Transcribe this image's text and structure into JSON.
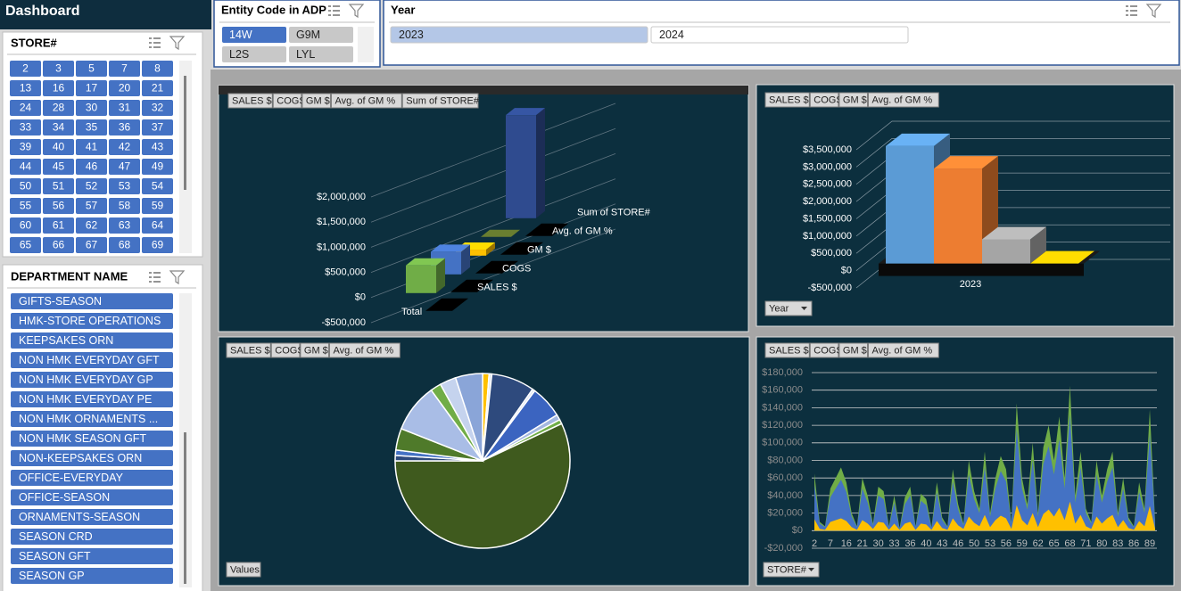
{
  "header": {
    "title": "Dashboard"
  },
  "slicers": {
    "store": {
      "title": "STORE#",
      "items": [
        "2",
        "3",
        "5",
        "7",
        "8",
        "13",
        "16",
        "17",
        "20",
        "21",
        "24",
        "28",
        "30",
        "31",
        "32",
        "33",
        "34",
        "35",
        "36",
        "37",
        "39",
        "40",
        "41",
        "42",
        "43",
        "44",
        "45",
        "46",
        "47",
        "49",
        "50",
        "51",
        "52",
        "53",
        "54",
        "55",
        "56",
        "57",
        "58",
        "59",
        "60",
        "61",
        "62",
        "63",
        "64",
        "65",
        "66",
        "67",
        "68",
        "69"
      ]
    },
    "department": {
      "title": "DEPARTMENT NAME",
      "items": [
        "GIFTS-SEASON",
        "HMK-STORE OPERATIONS",
        "KEEPSAKES ORN",
        "NON HMK EVERYDAY GFT",
        "NON HMK EVERYDAY GP",
        "NON HMK EVERYDAY PE",
        "NON HMK ORNAMENTS ...",
        "NON HMK SEASON GFT",
        "NON-KEEPSAKES ORN",
        "OFFICE-EVERYDAY",
        "OFFICE-SEASON",
        "ORNAMENTS-SEASON",
        "SEASON CRD",
        "SEASON GFT",
        "SEASON GP"
      ]
    },
    "entity": {
      "title": "Entity Code in ADP",
      "items": [
        {
          "label": "14W",
          "selected": true
        },
        {
          "label": "G9M",
          "selected": false
        },
        {
          "label": "L2S",
          "selected": false
        },
        {
          "label": "LYL",
          "selected": false
        }
      ]
    },
    "year": {
      "title": "Year",
      "items": [
        {
          "label": "2023",
          "selected": true
        },
        {
          "label": "2024",
          "selected": false
        }
      ]
    }
  },
  "chart_data": [
    {
      "type": "bar3d",
      "field_buttons": [
        "SALES $",
        "COGS",
        "GM $",
        "Avg. of GM %",
        "Sum of STORE#"
      ],
      "categories": [
        "Total"
      ],
      "series": [
        {
          "name": "SALES $",
          "color": "#70ad47",
          "values": [
            550000
          ]
        },
        {
          "name": "COGS",
          "color": "#4472c4",
          "values": [
            450000
          ]
        },
        {
          "name": "GM $",
          "color": "#ffc000",
          "values": [
            120000
          ]
        },
        {
          "name": "Avg. of GM %",
          "color": "#5b6e2a",
          "values": [
            0.35
          ]
        },
        {
          "name": "Sum of STORE#",
          "color": "#2f4b8f",
          "values": [
            2050000
          ]
        }
      ],
      "ylim": [
        -500000,
        2000000
      ],
      "yticks": [
        {
          "value": -500000,
          "label": "-$500,000"
        },
        {
          "value": 0,
          "label": "$0"
        },
        {
          "value": 500000,
          "label": "$500,000"
        },
        {
          "value": 1000000,
          "label": "$1,000,000"
        },
        {
          "value": 1500000,
          "label": "$1,500,000"
        },
        {
          "value": 2000000,
          "label": "$2,000,000"
        }
      ],
      "grid": true
    },
    {
      "type": "column3d",
      "field_buttons": [
        "SALES $",
        "COGS",
        "GM $",
        "Avg. of GM %"
      ],
      "filter_button": "Year",
      "categories": [
        "2023"
      ],
      "series": [
        {
          "name": "SALES $",
          "color": "#5b9bd5",
          "values": [
            3400000
          ]
        },
        {
          "name": "COGS",
          "color": "#ed7d31",
          "values": [
            2750000
          ]
        },
        {
          "name": "GM $",
          "color": "#a5a5a5",
          "values": [
            700000
          ]
        },
        {
          "name": "Avg. of GM %",
          "color": "#ffc000",
          "values": [
            0.35
          ]
        }
      ],
      "ylim": [
        -500000,
        3500000
      ],
      "yticks": [
        {
          "value": -500000,
          "label": "-$500,000"
        },
        {
          "value": 0,
          "label": "$0"
        },
        {
          "value": 500000,
          "label": "$500,000"
        },
        {
          "value": 1000000,
          "label": "$1,000,000"
        },
        {
          "value": 1500000,
          "label": "$1,500,000"
        },
        {
          "value": 2000000,
          "label": "$2,000,000"
        },
        {
          "value": 2500000,
          "label": "$2,500,000"
        },
        {
          "value": 3000000,
          "label": "$3,000,000"
        },
        {
          "value": 3500000,
          "label": "$3,500,000"
        }
      ],
      "grid": true
    },
    {
      "type": "pie",
      "field_buttons": [
        "SALES $",
        "COGS",
        "GM $",
        "Avg. of GM %"
      ],
      "axis_button": "Values",
      "values": [
        1.2,
        0.5,
        8,
        0.5,
        6,
        1,
        0.8,
        57,
        1,
        1,
        4,
        9,
        2,
        3,
        5
      ],
      "colors": [
        "#ffc000",
        "#dfe6f3",
        "#2e4a7d",
        "#dfe6f3",
        "#3b64c0",
        "#a4b8e0",
        "#70ad47",
        "#3f5a1e",
        "#2e4a7d",
        "#4472c4",
        "#4f7a2a",
        "#a9bde6",
        "#70ad47",
        "#c5d3ee",
        "#8aa5d8"
      ]
    },
    {
      "type": "area",
      "field_buttons": [
        "SALES $",
        "COGS",
        "GM $",
        "Avg. of GM %"
      ],
      "filter_button": "STORE#",
      "categories": [
        "2",
        null,
        null,
        "7",
        null,
        null,
        "16",
        null,
        null,
        "21",
        null,
        null,
        "30",
        null,
        null,
        "33",
        null,
        null,
        "36",
        null,
        null,
        "40",
        null,
        null,
        "43",
        null,
        null,
        "46",
        null,
        null,
        "50",
        null,
        null,
        "53",
        null,
        null,
        "56",
        null,
        null,
        "59",
        null,
        null,
        "62",
        null,
        null,
        "65",
        null,
        null,
        "68",
        null,
        null,
        "71",
        null,
        null,
        "80",
        null,
        null,
        "83",
        null,
        null,
        "86",
        null,
        null,
        "89",
        null
      ],
      "series": [
        {
          "name": "SALES $",
          "color": "#70ad47",
          "values": [
            65000,
            10000,
            5000,
            48000,
            60000,
            72000,
            55000,
            20000,
            5000,
            60000,
            40000,
            8000,
            50000,
            45000,
            5000,
            40000,
            3000,
            38000,
            50000,
            5000,
            42000,
            36000,
            4000,
            55000,
            15000,
            5000,
            70000,
            30000,
            8000,
            80000,
            45000,
            25000,
            90000,
            20000,
            60000,
            85000,
            70000,
            10000,
            145000,
            60000,
            30000,
            100000,
            20000,
            95000,
            120000,
            80000,
            130000,
            60000,
            165000,
            40000,
            90000,
            25000,
            10000,
            80000,
            40000,
            70000,
            90000,
            20000,
            60000,
            15000,
            5000,
            55000,
            25000,
            138000,
            10000
          ]
        },
        {
          "name": "COGS",
          "color": "#4472c4",
          "values": [
            52000,
            8000,
            4000,
            38000,
            48000,
            58000,
            44000,
            16000,
            4000,
            48000,
            32000,
            6000,
            40000,
            36000,
            4000,
            32000,
            2000,
            30000,
            40000,
            4000,
            34000,
            29000,
            3000,
            44000,
            12000,
            4000,
            56000,
            24000,
            6000,
            64000,
            36000,
            20000,
            72000,
            16000,
            48000,
            68000,
            56000,
            8000,
            116000,
            48000,
            24000,
            80000,
            16000,
            76000,
            96000,
            64000,
            104000,
            48000,
            132000,
            32000,
            72000,
            20000,
            8000,
            64000,
            32000,
            56000,
            72000,
            16000,
            48000,
            12000,
            4000,
            44000,
            20000,
            110000,
            8000
          ]
        },
        {
          "name": "GM $",
          "color": "#ffc000",
          "values": [
            13000,
            2000,
            1000,
            10000,
            12000,
            14000,
            11000,
            4000,
            1000,
            12000,
            8000,
            2000,
            10000,
            9000,
            1000,
            8000,
            1000,
            8000,
            10000,
            1000,
            8000,
            7000,
            1000,
            11000,
            3000,
            1000,
            14000,
            6000,
            2000,
            16000,
            9000,
            5000,
            18000,
            4000,
            12000,
            17000,
            14000,
            2000,
            29000,
            12000,
            6000,
            20000,
            4000,
            19000,
            24000,
            16000,
            26000,
            12000,
            33000,
            8000,
            18000,
            5000,
            2000,
            16000,
            8000,
            14000,
            18000,
            4000,
            12000,
            3000,
            1000,
            11000,
            5000,
            28000,
            2000
          ]
        }
      ],
      "ylim": [
        -20000,
        180000
      ],
      "yticks": [
        {
          "value": -20000,
          "label": "-$20,000"
        },
        {
          "value": 0,
          "label": "$0"
        },
        {
          "value": 20000,
          "label": "$20,000"
        },
        {
          "value": 40000,
          "label": "$40,000"
        },
        {
          "value": 60000,
          "label": "$60,000"
        },
        {
          "value": 80000,
          "label": "$80,000"
        },
        {
          "value": 100000,
          "label": "$100,000"
        },
        {
          "value": 120000,
          "label": "$120,000"
        },
        {
          "value": 140000,
          "label": "$140,000"
        },
        {
          "value": 160000,
          "label": "$160,000"
        },
        {
          "value": 180000,
          "label": "$180,000"
        }
      ],
      "grid": true
    }
  ]
}
